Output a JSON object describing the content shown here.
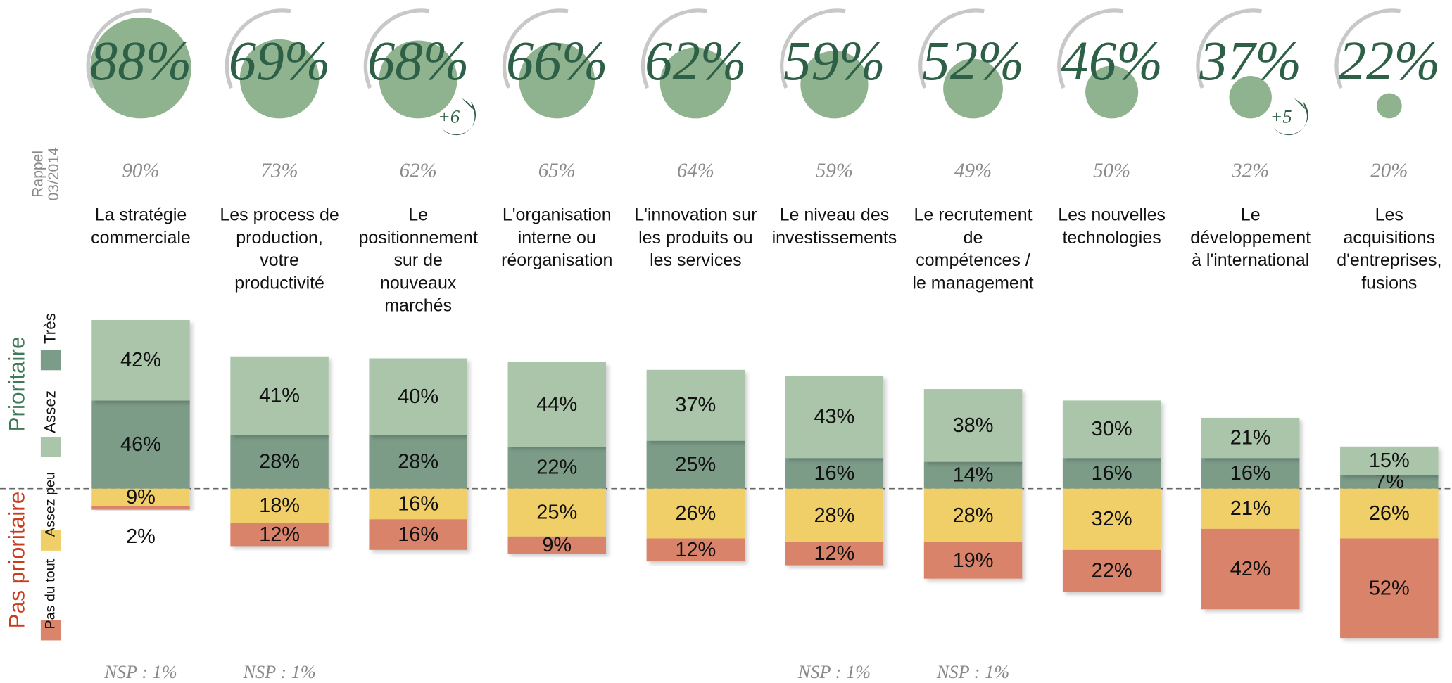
{
  "chart_data": {
    "type": "diverging_bar",
    "recall_label": "Rappel\n03/2014",
    "categories": [
      "La stratégie\ncommerciale",
      "Les process de\nproduction,\nvotre\nproductivité",
      "Le\npositionnement\nsur de\nnouveaux\nmarchés",
      "L'organisation\ninterne ou\nréorganisation",
      "L'innovation sur\nles produits ou\nles services",
      "Le niveau des\ninvestissements",
      "Le recrutement\nde\ncompétences /\nle management",
      "Les nouvelles\ntechnologies",
      "Le\ndéveloppement\nà l'international",
      "Les\nacquisitions\nd'entreprises,\nfusions"
    ],
    "totals": {
      "values": [
        88,
        69,
        68,
        66,
        62,
        59,
        52,
        46,
        37,
        22
      ],
      "value_labels": [
        "88%",
        "69%",
        "68%",
        "66%",
        "62%",
        "59%",
        "52%",
        "46%",
        "37%",
        "22%"
      ],
      "color": "#8fb38f"
    },
    "recall": {
      "values": [
        90,
        73,
        62,
        65,
        64,
        59,
        49,
        50,
        32,
        20
      ],
      "value_labels": [
        "90%",
        "73%",
        "62%",
        "65%",
        "64%",
        "59%",
        "49%",
        "50%",
        "32%",
        "20%"
      ]
    },
    "evolution": {
      "values": [
        null,
        null,
        6,
        null,
        null,
        null,
        null,
        null,
        5,
        null
      ],
      "value_labels": [
        null,
        null,
        "+6",
        null,
        null,
        null,
        null,
        null,
        "+5",
        null
      ]
    },
    "groups": [
      {
        "name": "Prioritaire",
        "color": "#3d7a57"
      },
      {
        "name": "Pas prioritaire",
        "color": "#cc3b1c"
      }
    ],
    "series": [
      {
        "name": "Très",
        "color": "#7b9c88",
        "side": "positive",
        "values": [
          46,
          28,
          28,
          22,
          25,
          16,
          14,
          16,
          16,
          7
        ],
        "value_labels": [
          "46%",
          "28%",
          "28%",
          "22%",
          "25%",
          "16%",
          "14%",
          "16%",
          "16%",
          "7%"
        ]
      },
      {
        "name": "Assez",
        "color": "#aac5aa",
        "side": "positive",
        "values": [
          42,
          41,
          40,
          44,
          37,
          43,
          38,
          30,
          21,
          15
        ],
        "value_labels": [
          "42%",
          "41%",
          "40%",
          "44%",
          "37%",
          "43%",
          "38%",
          "30%",
          "21%",
          "15%"
        ]
      },
      {
        "name": "Assez peu",
        "color": "#f0cf68",
        "side": "negative",
        "values": [
          9,
          18,
          16,
          25,
          26,
          28,
          28,
          32,
          21,
          26
        ],
        "value_labels": [
          "9%",
          "18%",
          "16%",
          "25%",
          "26%",
          "28%",
          "28%",
          "32%",
          "21%",
          "26%"
        ]
      },
      {
        "name": "Pas du tout",
        "color": "#d9846b",
        "side": "negative",
        "values": [
          2,
          12,
          16,
          9,
          12,
          12,
          19,
          22,
          42,
          52
        ],
        "value_labels": [
          "2%",
          "12%",
          "16%",
          "9%",
          "12%",
          "12%",
          "19%",
          "22%",
          "42%",
          "52%"
        ]
      }
    ],
    "nsp": [
      {
        "value": 1,
        "label": "NSP : 1%"
      },
      {
        "value": 1,
        "label": "NSP : 1%"
      },
      null,
      null,
      null,
      {
        "value": 1,
        "label": "NSP : 1%"
      },
      {
        "value": 1,
        "label": "NSP : 1%"
      },
      null,
      null,
      null
    ]
  }
}
